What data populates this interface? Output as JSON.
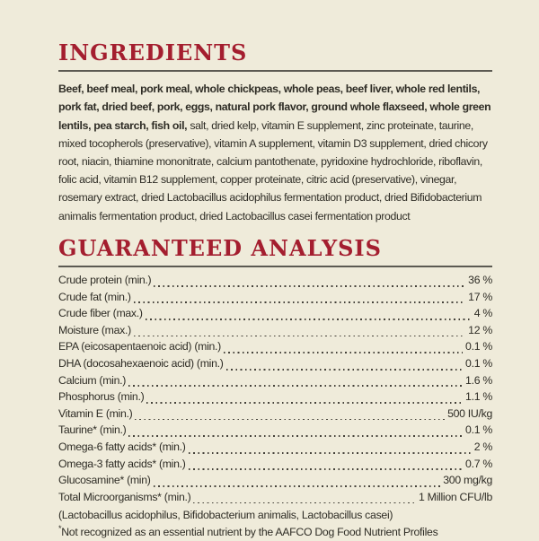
{
  "theme": {
    "background": "#EFEBDA",
    "heading_color": "#A41E2F",
    "rule_color": "#5C5A52",
    "text_color": "#2E2C25"
  },
  "ingredients": {
    "title": "INGREDIENTS",
    "bold_text": "Beef, beef meal, pork meal, whole chickpeas, whole peas, beef liver, whole red lentils, pork fat, dried beef, pork, eggs, natural pork flavor, ground whole flaxseed, whole green lentils, pea starch, fish oil,",
    "regular_text": "salt, dried kelp, vitamin E supplement, zinc proteinate, taurine, mixed tocopherols (preservative), vitamin A supplement, vitamin D3 supplement, dried chicory root, niacin, thiamine mononitrate, calcium pantothenate, pyridoxine hydrochloride, riboflavin, folic acid, vitamin B12 supplement, copper proteinate, citric acid (preservative), vinegar, rosemary extract, dried Lactobacillus acidophilus fermentation product, dried Bifidobacterium animalis fermentation product, dried Lactobacillus casei fermentation product"
  },
  "guaranteed_analysis": {
    "title": "GUARANTEED ANALYSIS",
    "rows": [
      {
        "label": "Crude protein (min.)",
        "value": "36 %"
      },
      {
        "label": "Crude fat (min.)",
        "value": "17 %"
      },
      {
        "label": "Crude fiber (max.)",
        "value": "4 %"
      },
      {
        "label": "Moisture (max.)",
        "value": "12 %"
      },
      {
        "label": "EPA (eicosapentaenoic acid) (min.)",
        "value": "0.1 %"
      },
      {
        "label": "DHA (docosahexaenoic acid) (min.)",
        "value": "0.1 %"
      },
      {
        "label": "Calcium (min.)",
        "value": "1.6 %"
      },
      {
        "label": "Phosphorus (min.)",
        "value": "1.1 %"
      },
      {
        "label": "Vitamin E (min.)",
        "value": "500 IU/kg"
      },
      {
        "label": "Taurine* (min.)",
        "value": "0.1 %"
      },
      {
        "label": "Omega-6 fatty acids* (min.)",
        "value": "2 %"
      },
      {
        "label": "Omega-3 fatty acids* (min.)",
        "value": "0.7 %"
      },
      {
        "label": "Glucosamine* (min)",
        "value": "300 mg/kg"
      },
      {
        "label": "Total Microorganisms* (min.)",
        "value": "1 Million CFU/lb"
      }
    ],
    "microorganisms_detail": "(Lactobacillus acidophilus, Bifidobacterium animalis, Lactobacillus casei)",
    "footnote_marker": "*",
    "footnote_text": "Not recognized as an essential nutrient by the AAFCO Dog Food Nutrient Profiles"
  }
}
